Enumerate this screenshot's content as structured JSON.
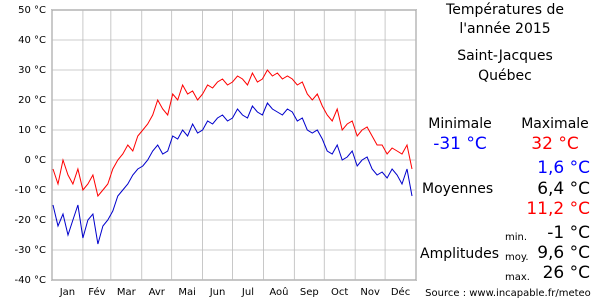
{
  "chart_data": {
    "type": "line",
    "x": [
      1,
      6,
      11,
      16,
      21,
      26,
      31,
      36,
      41,
      46,
      51,
      56,
      61,
      66,
      71,
      76,
      81,
      86,
      91,
      96,
      101,
      106,
      111,
      116,
      121,
      126,
      131,
      136,
      141,
      146,
      151,
      156,
      161,
      166,
      171,
      176,
      181,
      186,
      191,
      196,
      201,
      206,
      211,
      216,
      221,
      226,
      231,
      236,
      241,
      246,
      251,
      256,
      261,
      266,
      271,
      276,
      281,
      286,
      291,
      296,
      301,
      306,
      311,
      316,
      321,
      326,
      331,
      336,
      341,
      346,
      351,
      356,
      361
    ],
    "series": [
      {
        "color": "#ff0000",
        "values": [
          -3,
          -8,
          0,
          -5,
          -8,
          -3,
          -10,
          -8,
          -5,
          -12,
          -10,
          -8,
          -3,
          0,
          2,
          5,
          3,
          8,
          10,
          12,
          15,
          20,
          17,
          15,
          22,
          20,
          25,
          22,
          23,
          20,
          22,
          25,
          24,
          26,
          27,
          25,
          26,
          28,
          27,
          25,
          29,
          26,
          27,
          30,
          28,
          29,
          27,
          28,
          27,
          25,
          26,
          22,
          20,
          22,
          18,
          15,
          13,
          17,
          10,
          12,
          13,
          8,
          10,
          11,
          8,
          5,
          5,
          2,
          4,
          3,
          2,
          5,
          -3
        ]
      },
      {
        "color": "#0000cc",
        "values": [
          -15,
          -22,
          -18,
          -25,
          -20,
          -15,
          -26,
          -20,
          -18,
          -28,
          -22,
          -20,
          -17,
          -12,
          -10,
          -8,
          -5,
          -3,
          -2,
          0,
          3,
          5,
          2,
          3,
          8,
          7,
          10,
          8,
          12,
          9,
          10,
          13,
          12,
          14,
          15,
          13,
          14,
          17,
          15,
          14,
          18,
          16,
          15,
          19,
          17,
          16,
          15,
          17,
          16,
          13,
          14,
          10,
          9,
          10,
          7,
          3,
          2,
          5,
          0,
          1,
          3,
          -2,
          0,
          1,
          -3,
          -5,
          -4,
          -6,
          -3,
          -5,
          -8,
          -3,
          -12
        ]
      }
    ],
    "xlim": [
      0,
      365
    ],
    "xticks": [
      {
        "value": 15.5,
        "label": "Jan"
      },
      {
        "value": 45,
        "label": "Fév"
      },
      {
        "value": 74.5,
        "label": "Mar"
      },
      {
        "value": 105,
        "label": "Avr"
      },
      {
        "value": 135.5,
        "label": "Mai"
      },
      {
        "value": 166,
        "label": "Jun"
      },
      {
        "value": 196.5,
        "label": "Jul"
      },
      {
        "value": 227.5,
        "label": "Aoû"
      },
      {
        "value": 258,
        "label": "Sep"
      },
      {
        "value": 288.5,
        "label": "Oct"
      },
      {
        "value": 319,
        "label": "Nov"
      },
      {
        "value": 349.5,
        "label": "Déc"
      }
    ],
    "xgrid": [
      0,
      31,
      59,
      90,
      120,
      151,
      181,
      212,
      243,
      273,
      304,
      334,
      365
    ],
    "ylim": [
      -40,
      50
    ],
    "yticks": [
      {
        "value": -40,
        "label": "-40 °C"
      },
      {
        "value": -30,
        "label": "-30 °C"
      },
      {
        "value": -20,
        "label": "-20 °C"
      },
      {
        "value": -10,
        "label": "-10 °C"
      },
      {
        "value": 0,
        "label": "0 °C"
      },
      {
        "value": 10,
        "label": "10 °C"
      },
      {
        "value": 20,
        "label": "20 °C"
      },
      {
        "value": 30,
        "label": "30 °C"
      },
      {
        "value": 40,
        "label": "40 °C"
      },
      {
        "value": 50,
        "label": "50 °C"
      }
    ],
    "grid": true
  },
  "panel": {
    "title": [
      "Températures de",
      "l'année 2015"
    ],
    "place": [
      "Saint-Jacques",
      "Québec"
    ],
    "min_label": "Minimale",
    "min_value": "-31 °C",
    "max_label": "Maximale",
    "max_value": "32 °C",
    "mean_label": "Moyennes",
    "means": [
      "1,6 °C",
      "6,4 °C",
      "11,2 °C"
    ],
    "amp_label": "Amplitudes",
    "amp_keys": [
      "min.",
      "moy.",
      "max."
    ],
    "amps": [
      "-1 °C",
      "9,6 °C",
      "26 °C"
    ],
    "source": "Source : www.incapable.fr/meteo"
  }
}
